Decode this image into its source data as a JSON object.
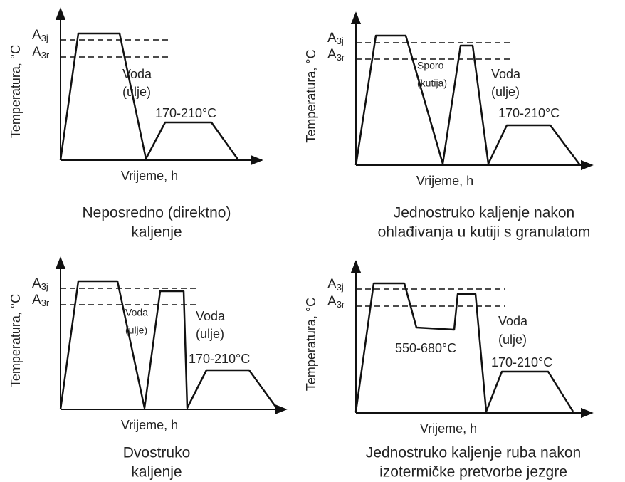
{
  "panels": [
    {
      "y_axis_label": "Temperatura, °C",
      "x_axis_label": "Vrijeme, h",
      "level_upper": {
        "base": "A",
        "sub": "3j"
      },
      "level_lower": {
        "base": "A",
        "sub": "3r"
      },
      "annotations": [
        "Voda",
        "(ulje)",
        "170-210°C"
      ],
      "caption": [
        "Neposredno (direktno)",
        "kaljenje"
      ]
    },
    {
      "y_axis_label": "Temperatura, °C",
      "x_axis_label": "Vrijeme, h",
      "level_upper": {
        "base": "A",
        "sub": "3j"
      },
      "level_lower": {
        "base": "A",
        "sub": "3r"
      },
      "annotations": [
        "Sporo",
        "(kutija)",
        "Voda",
        "(ulje)",
        "170-210°C"
      ],
      "caption": [
        "Jednostruko kaljenje nakon",
        "ohlađivanja u kutiji s granulatom"
      ]
    },
    {
      "y_axis_label": "Temperatura, °C",
      "x_axis_label": "Vrijeme, h",
      "level_upper": {
        "base": "A",
        "sub": "3j"
      },
      "level_lower": {
        "base": "A",
        "sub": "3r"
      },
      "annotations": [
        "Voda",
        "(ulje)",
        "Voda",
        "(ulje)",
        "170-210°C"
      ],
      "caption": [
        "Dvostruko",
        "kaljenje"
      ]
    },
    {
      "y_axis_label": "Temperatura, °C",
      "x_axis_label": "Vrijeme, h",
      "level_upper": {
        "base": "A",
        "sub": "3j"
      },
      "level_lower": {
        "base": "A",
        "sub": "3r"
      },
      "annotations": [
        "550-680°C",
        "Voda",
        "(ulje)",
        "170-210°C"
      ],
      "caption": [
        "Jednostruko kaljenje ruba nakon",
        "izotermičke pretvorbe jezgre"
      ]
    }
  ]
}
